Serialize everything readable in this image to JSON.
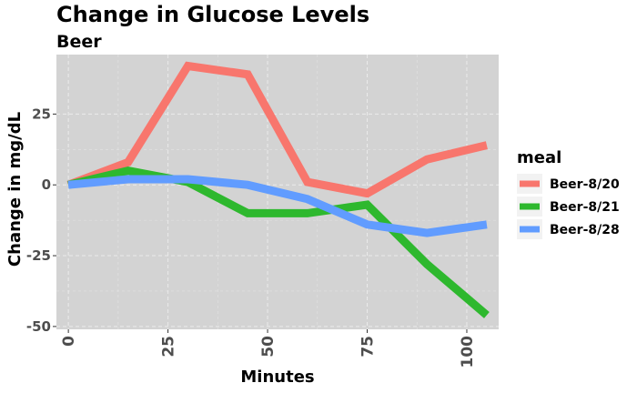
{
  "chart_data": {
    "type": "line",
    "title": "Change in Glucose Levels",
    "subtitle": "Beer",
    "xlabel": "Minutes",
    "ylabel": "Change in mg/dL",
    "xlim": [
      -3,
      108
    ],
    "ylim": [
      -51,
      46
    ],
    "x_ticks": [
      0,
      25,
      50,
      75,
      100
    ],
    "y_ticks": [
      -50,
      -25,
      0,
      25
    ],
    "grid": true,
    "legend_title": "meal",
    "legend_position": "right",
    "series": [
      {
        "name": "Beer-8/20",
        "color": "#F8766D",
        "x": [
          0,
          15,
          30,
          45,
          60,
          75,
          90,
          105
        ],
        "y": [
          0,
          8,
          42,
          39,
          1,
          -3,
          9,
          14
        ]
      },
      {
        "name": "Beer-8/21",
        "color": "#2EB82E",
        "x": [
          0,
          15,
          30,
          45,
          60,
          75,
          90,
          105
        ],
        "y": [
          0,
          5,
          1,
          -10,
          -10,
          -7,
          -28,
          -46
        ]
      },
      {
        "name": "Beer-8/28",
        "color": "#619CFF",
        "x": [
          0,
          15,
          30,
          45,
          60,
          75,
          90,
          105
        ],
        "y": [
          0,
          2,
          2,
          0,
          -5,
          -14,
          -17,
          -14
        ]
      }
    ]
  }
}
